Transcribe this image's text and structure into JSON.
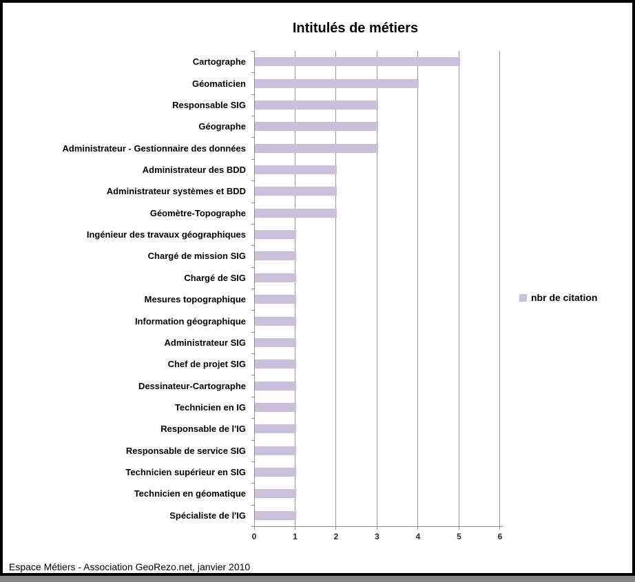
{
  "page": {
    "border_color": "#000000",
    "background": "#ffffff",
    "bottom_strip_color": "#848484"
  },
  "footer": {
    "text": "Espace Métiers - Association GeoRezo.net, janvier 2010"
  },
  "chart_data": {
    "type": "bar",
    "orientation": "horizontal",
    "title": "Intitulés de métiers",
    "xlabel": "",
    "ylabel": "",
    "xlim": [
      0,
      6
    ],
    "x_ticks": [
      "0",
      "1",
      "2",
      "3",
      "4",
      "5",
      "6"
    ],
    "grid": true,
    "bar_color": "#CAC0DC",
    "axis_color": "#8f8f8f",
    "gridline_color": "#969696",
    "legend_position": "right",
    "legend": [
      {
        "label": "nbr de citation",
        "color": "#CAC0DC"
      }
    ],
    "categories": [
      "Cartographe",
      "Géomaticien",
      "Responsable SIG",
      "Géographe",
      "Administrateur - Gestionnaire des données",
      "Administrateur des BDD",
      "Administrateur systèmes et BDD",
      "Géomètre-Topographe",
      "Ingénieur des travaux géographiques",
      "Chargé de mission SIG",
      "Chargé de SIG",
      "Mesures topographique",
      "Information géographique",
      "Administrateur SIG",
      "Chef de projet SIG",
      "Dessinateur-Cartographe",
      "Technicien en IG",
      "Responsable de l'IG",
      "Responsable de service SIG",
      "Technicien supérieur en SIG",
      "Technicien en géomatique",
      "Spécialiste de l'IG"
    ],
    "values": [
      5,
      4,
      3,
      3,
      3,
      2,
      2,
      2,
      1,
      1,
      1,
      1,
      1,
      1,
      1,
      1,
      1,
      1,
      1,
      1,
      1,
      1
    ]
  }
}
